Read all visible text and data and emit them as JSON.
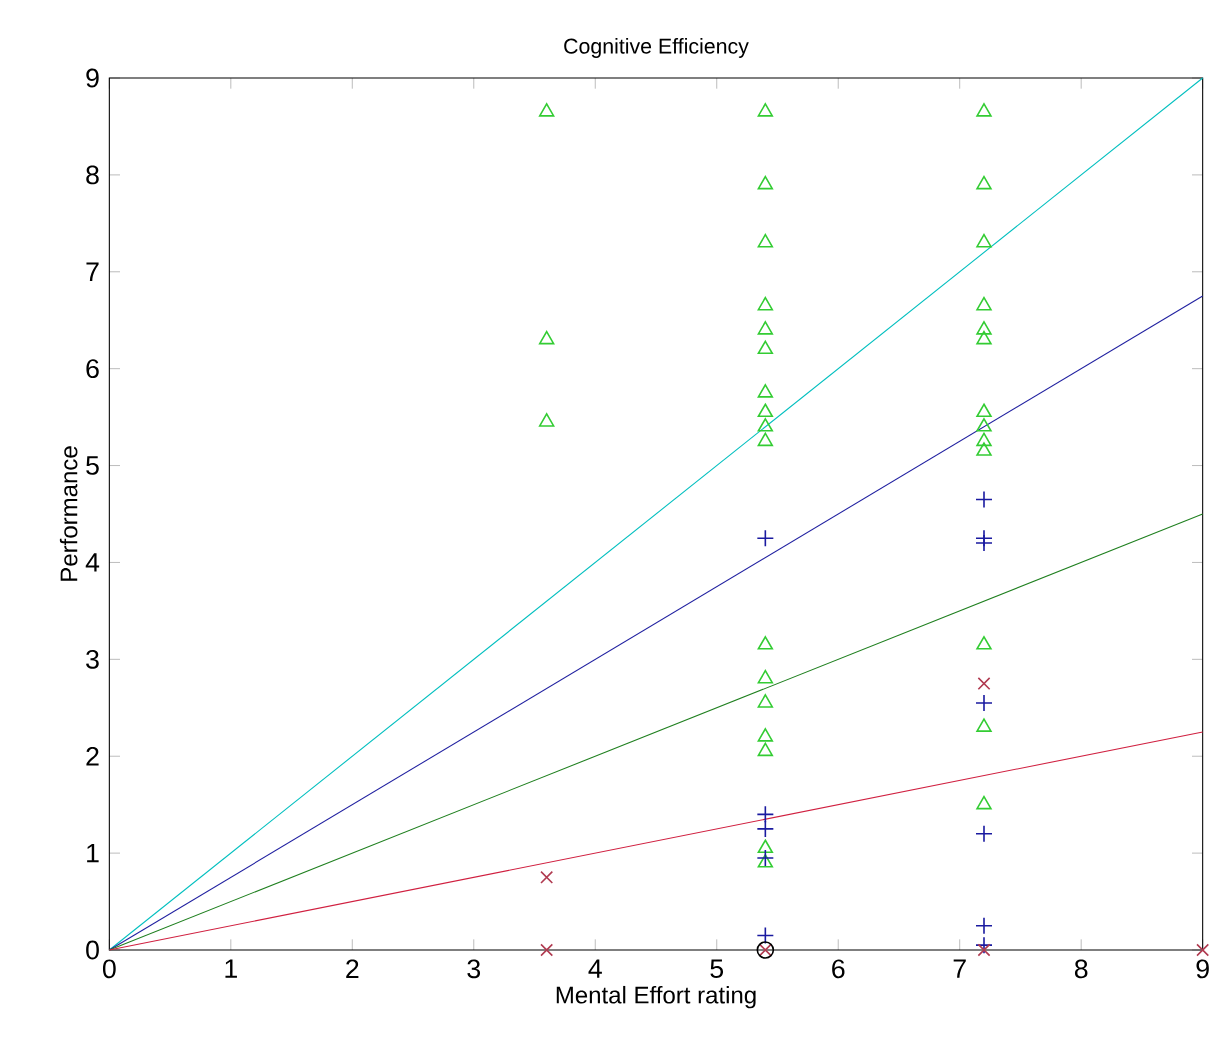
{
  "chart_data": {
    "type": "scatter",
    "title": "Cognitive Efficiency",
    "xlabel": "Mental Effort rating",
    "ylabel": "Performance",
    "xlim": [
      0,
      9
    ],
    "ylim": [
      0,
      9
    ],
    "xticks": [
      0,
      1,
      2,
      3,
      4,
      5,
      6,
      7,
      8,
      9
    ],
    "yticks": [
      0,
      1,
      2,
      3,
      4,
      5,
      6,
      7,
      8,
      9
    ],
    "grid": false,
    "series": [
      {
        "type": "line",
        "color": "#00bfbf",
        "marker": "none",
        "x": [
          0,
          9
        ],
        "values": [
          0,
          9
        ]
      },
      {
        "type": "line",
        "color": "#2020a0",
        "marker": "none",
        "x": [
          0,
          9
        ],
        "values": [
          0,
          6.75
        ]
      },
      {
        "type": "line",
        "color": "#208020",
        "marker": "none",
        "x": [
          0,
          9
        ],
        "values": [
          0,
          4.5
        ]
      },
      {
        "type": "line",
        "color": "#d02040",
        "marker": "none",
        "x": [
          0,
          9
        ],
        "values": [
          0,
          2.25
        ]
      },
      {
        "color": "#33cc33",
        "marker": "triangle",
        "x": [
          3.6,
          3.6,
          3.6,
          5.4,
          5.4,
          5.4,
          5.4,
          5.4,
          5.4,
          5.4,
          5.4,
          5.4,
          5.4,
          5.4,
          5.4,
          5.4,
          5.4,
          5.4,
          5.4,
          5.4,
          7.2,
          7.2,
          7.2,
          7.2,
          7.2,
          7.2,
          7.2,
          7.2,
          7.2,
          7.2,
          7.2,
          7.2,
          7.2
        ],
        "values": [
          8.65,
          6.3,
          5.45,
          8.65,
          7.9,
          7.3,
          6.65,
          6.4,
          6.2,
          5.75,
          5.55,
          5.4,
          5.25,
          3.15,
          2.8,
          2.55,
          2.2,
          2.05,
          1.05,
          0.9,
          8.65,
          7.9,
          7.3,
          6.65,
          6.4,
          6.3,
          5.55,
          5.4,
          5.25,
          5.15,
          3.15,
          2.3,
          1.5
        ]
      },
      {
        "color": "#1a1aa0",
        "marker": "cross",
        "x": [
          5.4,
          5.4,
          5.4,
          5.4,
          5.4,
          7.2,
          7.2,
          7.2,
          7.2,
          7.2,
          7.2,
          7.2
        ],
        "values": [
          4.25,
          1.4,
          1.25,
          0.95,
          0.15,
          4.65,
          4.25,
          4.2,
          2.55,
          1.2,
          0.25,
          0.05
        ]
      },
      {
        "color": "#b03a50",
        "marker": "x",
        "x": [
          3.6,
          3.6,
          5.4,
          7.2,
          7.2,
          9
        ],
        "values": [
          0.75,
          0,
          0,
          2.75,
          0,
          0
        ]
      },
      {
        "color": "#000000",
        "marker": "circle",
        "x": [
          5.4
        ],
        "values": [
          0
        ]
      }
    ]
  }
}
